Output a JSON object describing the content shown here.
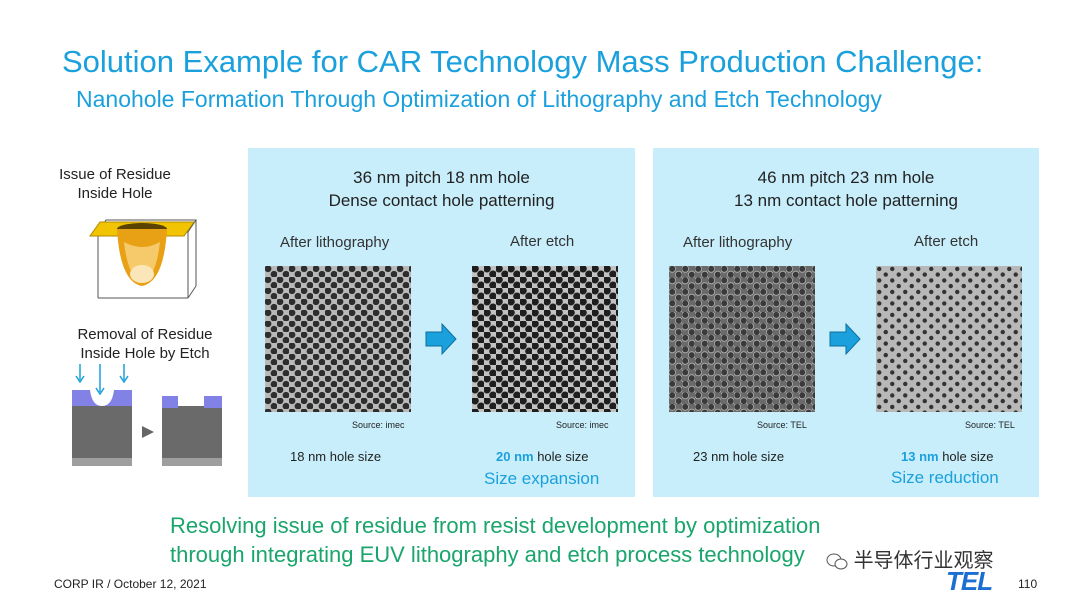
{
  "title": "Solution Example for CAR Technology Mass Production Challenge:",
  "subtitle": "Nanohole Formation Through Optimization of Lithography and Etch Technology",
  "left": {
    "issue_line1": "Issue of Residue",
    "issue_line2": "Inside Hole",
    "removal_line1": "Removal of Residue",
    "removal_line2": "Inside Hole by Etch"
  },
  "panels": [
    {
      "head1": "36 nm pitch 18 nm hole",
      "head2": "Dense contact hole patterning",
      "col1": "After lithography",
      "col2": "After etch",
      "src1": "Source: imec",
      "src2": "Source: imec",
      "size1": "18 nm hole size",
      "size2_bold": "20 nm",
      "size2_rest": " hole size",
      "size2_note": "Size expansion"
    },
    {
      "head1": "46 nm pitch 23 nm hole",
      "head2": "13 nm contact hole patterning",
      "col1": "After lithography",
      "col2": "After etch",
      "src1": "Source: TEL",
      "src2": "Source: TEL",
      "size1": "23 nm hole size",
      "size2_bold": "13 nm",
      "size2_rest": " hole size",
      "size2_note": "Size reduction"
    }
  ],
  "conclusion_line1": "Resolving issue of residue from resist development by optimization",
  "conclusion_line2": "through integrating EUV lithography and etch process technology",
  "footer": "CORP IR / October 12, 2021",
  "logo": "TEL",
  "page_number": "110",
  "watermark": "半导体行业观察",
  "colors": {
    "accent": "#1aa0dc",
    "panel": "#c8eefb",
    "conclusion": "#1aa56d"
  }
}
